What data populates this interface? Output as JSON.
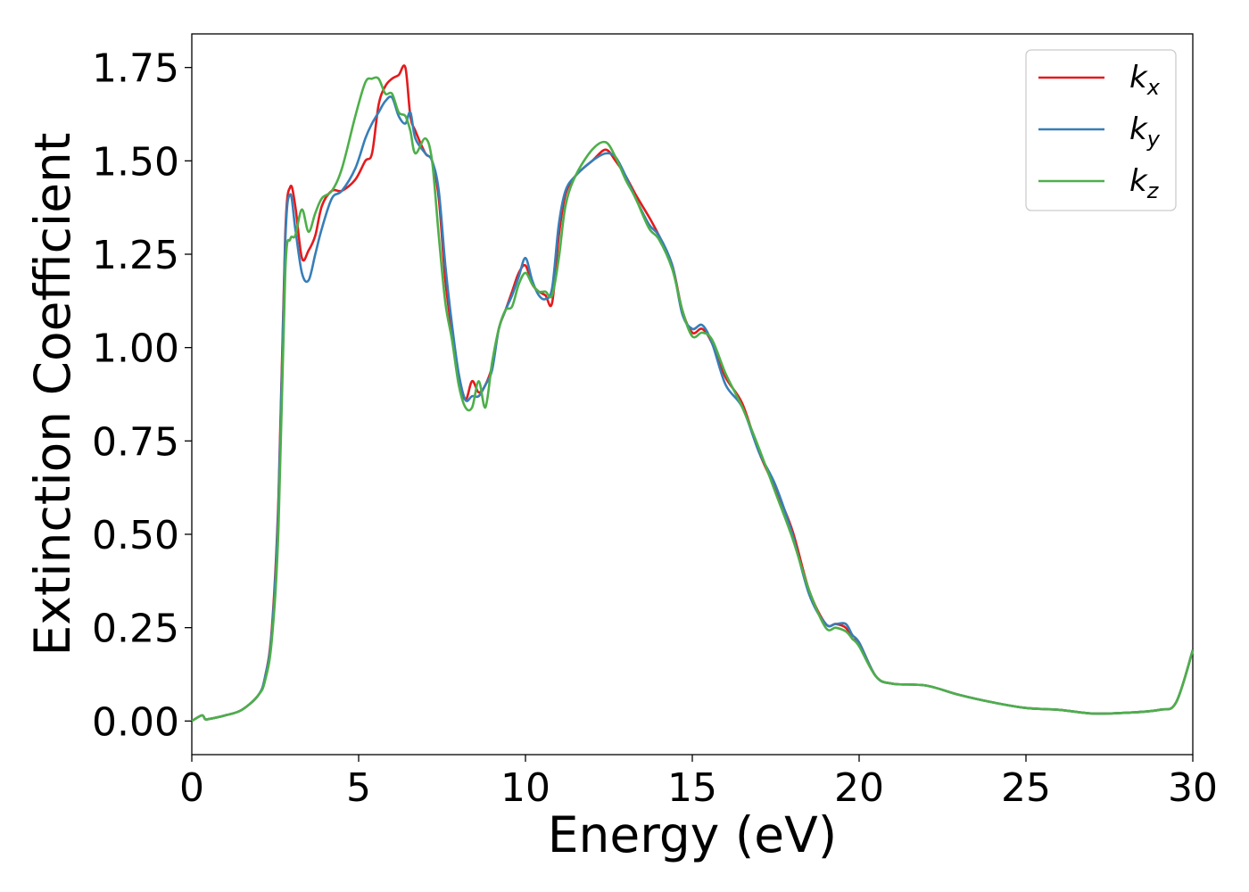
{
  "chart_data": {
    "type": "line",
    "xlabel": "Energy (eV)",
    "ylabel": "Extinction Coefficient",
    "xlim": [
      0,
      30
    ],
    "ylim": [
      -0.09,
      1.84
    ],
    "xticks": [
      0,
      5,
      10,
      15,
      20,
      25,
      30
    ],
    "xtick_labels": [
      "0",
      "5",
      "10",
      "15",
      "20",
      "25",
      "30"
    ],
    "yticks": [
      0.0,
      0.25,
      0.5,
      0.75,
      1.0,
      1.25,
      1.5,
      1.75
    ],
    "ytick_labels": [
      "0.00",
      "0.25",
      "0.50",
      "0.75",
      "1.00",
      "1.25",
      "1.50",
      "1.75"
    ],
    "grid": false,
    "legend_position": "top-right",
    "series": [
      {
        "name": "k_x",
        "legend_base": "k",
        "legend_sub": "x",
        "color": "#e41a1c",
        "x": [
          0,
          0.3,
          0.4,
          0.5,
          1,
          1.5,
          2,
          2.2,
          2.4,
          2.6,
          2.8,
          2.95,
          3.1,
          3.3,
          3.5,
          3.7,
          3.9,
          4.2,
          4.5,
          4.9,
          5.2,
          5.4,
          5.6,
          5.8,
          6.0,
          6.2,
          6.4,
          6.55,
          6.7,
          7.0,
          7.2,
          7.4,
          7.6,
          7.8,
          8.0,
          8.2,
          8.4,
          8.6,
          8.8,
          9.0,
          9.2,
          9.4,
          9.6,
          9.8,
          10.0,
          10.2,
          10.4,
          10.6,
          10.8,
          11.0,
          11.2,
          11.5,
          12.0,
          12.4,
          12.7,
          13.0,
          13.3,
          13.7,
          14.0,
          14.4,
          14.7,
          15.0,
          15.3,
          15.6,
          16.0,
          16.5,
          17.0,
          17.5,
          18.0,
          18.5,
          19.0,
          19.3,
          19.6,
          19.8,
          20.0,
          20.5,
          21.0,
          22.0,
          23.0,
          24.0,
          25.0,
          26.0,
          27.0,
          28.0,
          29.0,
          29.5,
          30.0
        ],
        "y": [
          0.0,
          0.015,
          0.005,
          0.005,
          0.015,
          0.03,
          0.07,
          0.12,
          0.25,
          0.6,
          1.3,
          1.43,
          1.38,
          1.24,
          1.26,
          1.3,
          1.38,
          1.42,
          1.42,
          1.45,
          1.5,
          1.52,
          1.65,
          1.7,
          1.72,
          1.73,
          1.75,
          1.62,
          1.58,
          1.52,
          1.5,
          1.4,
          1.18,
          1.04,
          0.92,
          0.86,
          0.91,
          0.88,
          0.9,
          0.95,
          1.05,
          1.1,
          1.15,
          1.2,
          1.22,
          1.17,
          1.15,
          1.14,
          1.12,
          1.3,
          1.41,
          1.46,
          1.5,
          1.53,
          1.5,
          1.46,
          1.41,
          1.35,
          1.3,
          1.22,
          1.1,
          1.04,
          1.05,
          1.01,
          0.92,
          0.85,
          0.72,
          0.62,
          0.51,
          0.35,
          0.26,
          0.26,
          0.25,
          0.22,
          0.21,
          0.12,
          0.1,
          0.095,
          0.07,
          0.05,
          0.035,
          0.03,
          0.02,
          0.022,
          0.03,
          0.05,
          0.19
        ]
      },
      {
        "name": "k_y",
        "legend_base": "k",
        "legend_sub": "y",
        "color": "#377eb8",
        "x": [
          0,
          0.3,
          0.4,
          0.5,
          1,
          1.5,
          2,
          2.2,
          2.4,
          2.6,
          2.8,
          2.95,
          3.1,
          3.3,
          3.5,
          3.7,
          3.9,
          4.2,
          4.5,
          4.9,
          5.2,
          5.4,
          5.6,
          5.8,
          6.0,
          6.2,
          6.4,
          6.55,
          6.7,
          7.0,
          7.2,
          7.4,
          7.6,
          7.8,
          8.0,
          8.2,
          8.4,
          8.6,
          8.8,
          9.0,
          9.2,
          9.4,
          9.6,
          9.8,
          10.0,
          10.2,
          10.4,
          10.6,
          10.8,
          11.0,
          11.2,
          11.5,
          12.0,
          12.4,
          12.7,
          13.0,
          13.3,
          13.7,
          14.0,
          14.4,
          14.7,
          15.0,
          15.3,
          15.6,
          16.0,
          16.5,
          17.0,
          17.5,
          18.0,
          18.5,
          19.0,
          19.3,
          19.6,
          19.8,
          20.0,
          20.5,
          21.0,
          22.0,
          23.0,
          24.0,
          25.0,
          26.0,
          27.0,
          28.0,
          29.0,
          29.5,
          30.0
        ],
        "y": [
          0.0,
          0.015,
          0.005,
          0.005,
          0.015,
          0.03,
          0.07,
          0.12,
          0.24,
          0.58,
          1.28,
          1.41,
          1.32,
          1.2,
          1.18,
          1.25,
          1.32,
          1.4,
          1.42,
          1.48,
          1.56,
          1.6,
          1.63,
          1.66,
          1.67,
          1.62,
          1.6,
          1.63,
          1.56,
          1.52,
          1.5,
          1.42,
          1.22,
          1.06,
          0.93,
          0.86,
          0.87,
          0.87,
          0.9,
          0.94,
          1.05,
          1.1,
          1.14,
          1.19,
          1.24,
          1.18,
          1.14,
          1.13,
          1.16,
          1.33,
          1.42,
          1.46,
          1.5,
          1.52,
          1.51,
          1.46,
          1.4,
          1.33,
          1.3,
          1.22,
          1.09,
          1.05,
          1.06,
          1.01,
          0.9,
          0.84,
          0.72,
          0.63,
          0.5,
          0.34,
          0.26,
          0.26,
          0.26,
          0.23,
          0.21,
          0.12,
          0.1,
          0.095,
          0.07,
          0.05,
          0.035,
          0.03,
          0.02,
          0.022,
          0.03,
          0.05,
          0.19
        ]
      },
      {
        "name": "k_z",
        "legend_base": "k",
        "legend_sub": "z",
        "color": "#4daf4a",
        "x": [
          0,
          0.3,
          0.4,
          0.5,
          1,
          1.5,
          2,
          2.2,
          2.4,
          2.6,
          2.8,
          2.95,
          3.1,
          3.3,
          3.5,
          3.7,
          3.9,
          4.2,
          4.5,
          4.9,
          5.2,
          5.4,
          5.6,
          5.8,
          6.0,
          6.2,
          6.4,
          6.55,
          6.7,
          7.0,
          7.2,
          7.4,
          7.6,
          7.8,
          8.0,
          8.2,
          8.4,
          8.6,
          8.8,
          9.0,
          9.2,
          9.4,
          9.6,
          9.8,
          10.0,
          10.2,
          10.4,
          10.6,
          10.8,
          11.0,
          11.2,
          11.5,
          12.0,
          12.4,
          12.7,
          13.0,
          13.3,
          13.7,
          14.0,
          14.4,
          14.7,
          15.0,
          15.3,
          15.6,
          16.0,
          16.5,
          17.0,
          17.5,
          18.0,
          18.5,
          19.0,
          19.3,
          19.6,
          19.8,
          20.0,
          20.5,
          21.0,
          22.0,
          23.0,
          24.0,
          25.0,
          26.0,
          27.0,
          28.0,
          29.0,
          29.5,
          30.0
        ],
        "y": [
          0.0,
          0.015,
          0.005,
          0.005,
          0.015,
          0.03,
          0.07,
          0.11,
          0.22,
          0.52,
          1.2,
          1.29,
          1.3,
          1.37,
          1.31,
          1.36,
          1.4,
          1.42,
          1.48,
          1.62,
          1.71,
          1.72,
          1.72,
          1.68,
          1.68,
          1.63,
          1.62,
          1.58,
          1.52,
          1.56,
          1.5,
          1.3,
          1.12,
          1.02,
          0.9,
          0.84,
          0.84,
          0.91,
          0.84,
          0.96,
          1.05,
          1.1,
          1.11,
          1.17,
          1.2,
          1.17,
          1.15,
          1.15,
          1.14,
          1.24,
          1.38,
          1.46,
          1.53,
          1.55,
          1.51,
          1.45,
          1.4,
          1.32,
          1.29,
          1.21,
          1.1,
          1.03,
          1.04,
          1.02,
          0.93,
          0.84,
          0.73,
          0.61,
          0.49,
          0.35,
          0.25,
          0.25,
          0.24,
          0.22,
          0.2,
          0.12,
          0.1,
          0.095,
          0.07,
          0.05,
          0.035,
          0.03,
          0.02,
          0.022,
          0.03,
          0.05,
          0.19
        ]
      }
    ]
  }
}
